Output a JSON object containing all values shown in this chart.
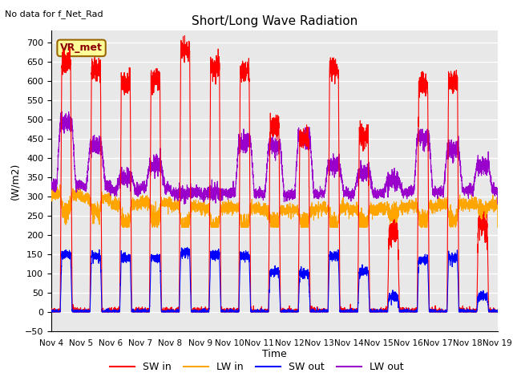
{
  "title": "Short/Long Wave Radiation",
  "ylabel": "(W/m2)",
  "xlabel": "Time",
  "annotation": "No data for f_Net_Rad",
  "station_label": "VR_met",
  "ylim": [
    -50,
    730
  ],
  "yticks": [
    -50,
    0,
    50,
    100,
    150,
    200,
    250,
    300,
    350,
    400,
    450,
    500,
    550,
    600,
    650,
    700
  ],
  "xtick_labels": [
    "Nov 4",
    "Nov 5",
    "Nov 6",
    "Nov 7",
    "Nov 8",
    "Nov 9",
    "Nov 10",
    "Nov 11",
    "Nov 12",
    "Nov 13",
    "Nov 14",
    "Nov 15",
    "Nov 16",
    "Nov 17",
    "Nov 18",
    "Nov 19"
  ],
  "n_days": 15,
  "colors": {
    "SW_in": "#FF0000",
    "LW_in": "#FFA500",
    "SW_out": "#0000FF",
    "LW_out": "#9900CC",
    "bg_plot": "#E8E8E8",
    "bg_fig": "#FFFFFF",
    "grid": "#FFFFFF"
  },
  "legend_labels": [
    "SW in",
    "LW in",
    "SW out",
    "LW out"
  ],
  "sw_in_peaks": [
    645,
    630,
    595,
    600,
    680,
    635,
    625,
    480,
    450,
    630,
    460,
    205,
    590,
    600,
    225
  ],
  "sw_out_peaks": [
    150,
    145,
    140,
    140,
    155,
    150,
    145,
    105,
    100,
    145,
    105,
    40,
    135,
    140,
    40
  ],
  "lw_out_day_peaks": [
    490,
    430,
    350,
    380,
    285,
    310,
    440,
    430,
    450,
    380,
    360,
    340,
    450,
    420,
    380
  ],
  "lw_in_night": [
    305,
    295,
    280,
    285,
    275,
    270,
    270,
    265,
    265,
    270,
    265,
    270,
    275,
    280,
    280
  ],
  "lw_in_day_drop": [
    45,
    40,
    50,
    45,
    55,
    50,
    45,
    35,
    35,
    45,
    35,
    20,
    40,
    40,
    20
  ],
  "lw_out_night": [
    330,
    325,
    315,
    320,
    310,
    308,
    308,
    305,
    305,
    308,
    305,
    308,
    312,
    315,
    315
  ],
  "day_start": 0.35,
  "day_end": 0.65
}
